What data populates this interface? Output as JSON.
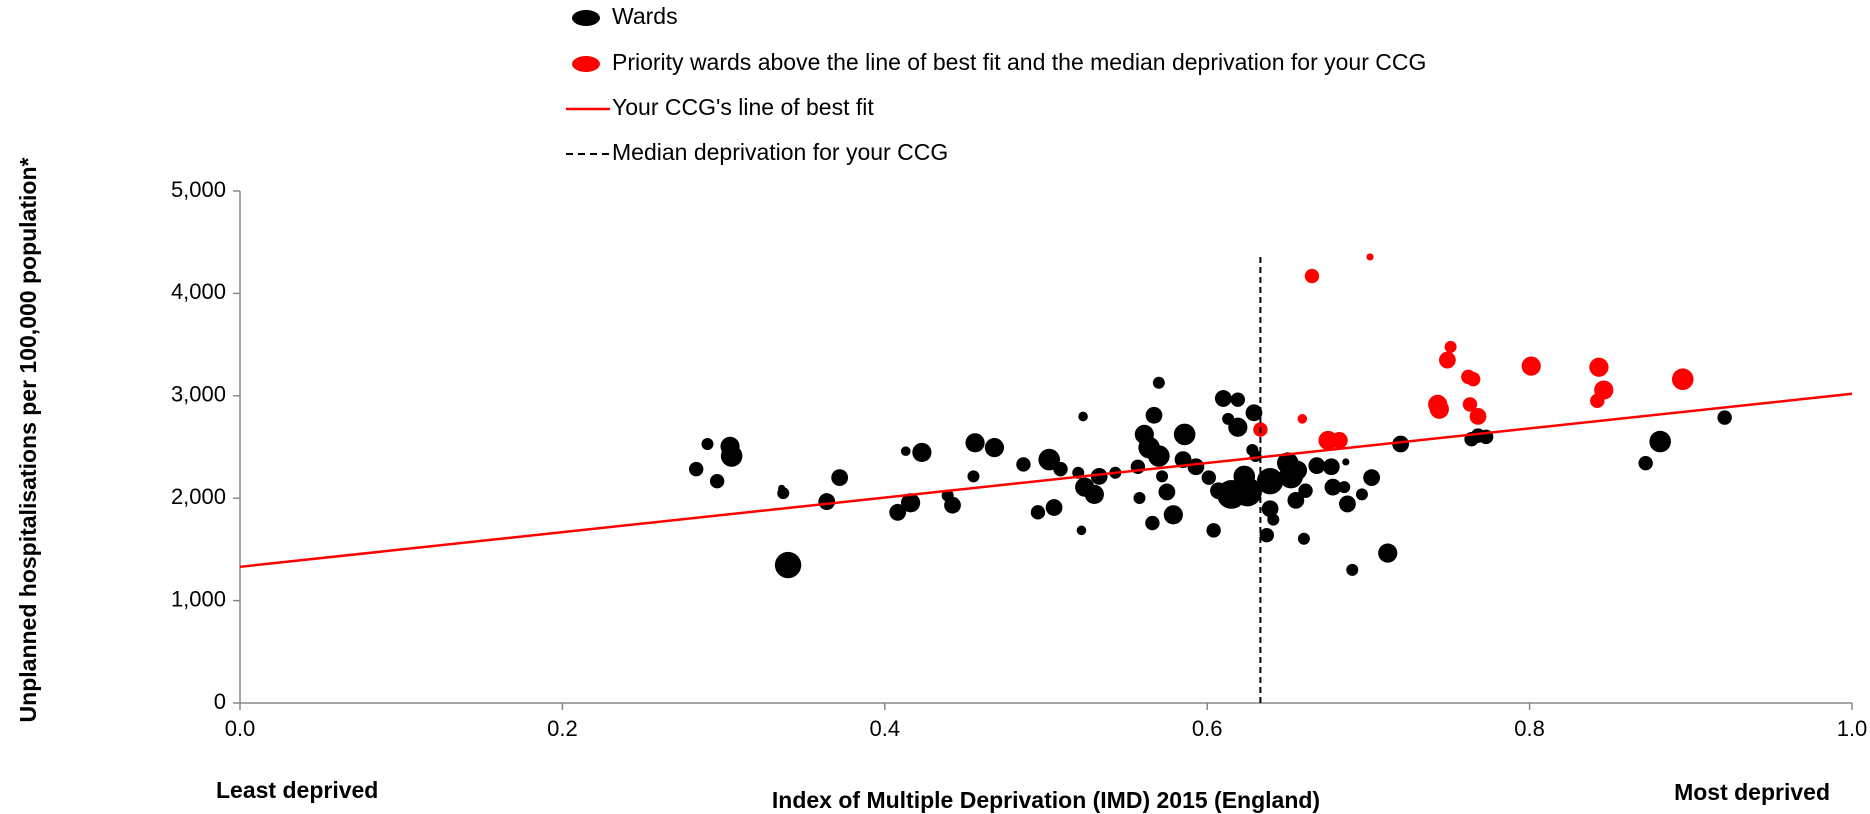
{
  "chart_data": {
    "type": "scatter",
    "x_label": "Index of Multiple Deprivation (IMD) 2015 (England)",
    "y_label": "Unplanned hospitalisations per 100,000 population*",
    "annotations": [
      "Least deprived",
      "Most deprived"
    ],
    "xlim": [
      0,
      1
    ],
    "ylim": [
      0,
      5000
    ],
    "xticks": [
      {
        "value": 0,
        "label": "0.0"
      },
      0.2,
      0.4,
      0.6,
      0.8,
      {
        "value": 1,
        "label": "1.0"
      }
    ],
    "yticks": [
      {
        "value": 0,
        "label": "0"
      },
      {
        "value": 1000,
        "label": "1,000"
      },
      {
        "value": 2000,
        "label": "2,000"
      },
      {
        "value": 3000,
        "label": "3,000"
      },
      {
        "value": 4000,
        "label": "4,000"
      },
      {
        "value": 5000,
        "label": "5,000"
      }
    ],
    "series": [
      {
        "name": "Wards",
        "color": "#000000",
        "x": [
          0.283,
          0.29,
          0.296,
          0.304,
          0.305,
          0.337,
          0.336,
          0.34,
          0.364,
          0.372,
          0.408,
          0.413,
          0.416,
          0.423,
          0.439,
          0.442,
          0.455,
          0.456,
          0.468,
          0.486,
          0.495,
          0.502,
          0.505,
          0.509,
          0.52,
          0.523,
          0.522,
          0.524,
          0.53,
          0.533,
          0.543,
          0.557,
          0.558,
          0.561,
          0.564,
          0.57,
          0.567,
          0.57,
          0.566,
          0.572,
          0.575,
          0.579,
          0.586,
          0.585,
          0.593,
          0.601,
          0.604,
          0.607,
          0.61,
          0.613,
          0.619,
          0.619,
          0.615,
          0.623,
          0.625,
          0.628,
          0.629,
          0.63,
          0.637,
          0.639,
          0.639,
          0.641,
          0.65,
          0.652,
          0.655,
          0.656,
          0.66,
          0.661,
          0.668,
          0.677,
          0.678,
          0.685,
          0.686,
          0.687,
          0.69,
          0.696,
          0.702,
          0.712,
          0.72,
          0.764,
          0.768,
          0.773,
          0.872,
          0.881,
          0.921
        ],
        "values": [
          2284,
          2529,
          2166,
          2506,
          2412,
          2049,
          2096,
          1347,
          1967,
          2201,
          1862,
          2459,
          1955,
          2447,
          2026,
          1932,
          2213,
          2541,
          2494,
          2330,
          1862,
          2377,
          1909,
          2284,
          2248,
          2798,
          1686,
          2108,
          2037,
          2213,
          2248,
          2307,
          2002,
          2623,
          2494,
          2412,
          2810,
          3127,
          1757,
          2213,
          2061,
          1838,
          2623,
          2377,
          2307,
          2201,
          1686,
          2073,
          2974,
          2775,
          2962,
          2693,
          2037,
          2213,
          2061,
          2471,
          2834,
          2412,
          1639,
          2166,
          1897,
          1791,
          2342,
          2213,
          1979,
          2272,
          1604,
          2073,
          2318,
          2307,
          2108,
          2108,
          2354,
          1944,
          1300,
          2037,
          2201,
          1464,
          2529,
          2576,
          2611,
          2599,
          2342,
          2553,
          2787
        ],
        "sizes": [
          6,
          5,
          6,
          8,
          9,
          5,
          3,
          11,
          7,
          7,
          7,
          4,
          8,
          8,
          5,
          7,
          5,
          8,
          8,
          6,
          6,
          9,
          7,
          6,
          5,
          4,
          4,
          8,
          8,
          7,
          5,
          6,
          5,
          8,
          9,
          9,
          7,
          5,
          6,
          5,
          7,
          8,
          9,
          7,
          7,
          6,
          6,
          7,
          7,
          5,
          6,
          8,
          12,
          9,
          12,
          5,
          7,
          5,
          6,
          11,
          7,
          5,
          9,
          10,
          7,
          8,
          5,
          6,
          7,
          7,
          7,
          5,
          3,
          7,
          5,
          5,
          7,
          8,
          7,
          6,
          6,
          6,
          6,
          9,
          6
        ]
      },
      {
        "name": "Priority wards above the line of best fit and the median deprivation for your CCG",
        "color": "#ff0000",
        "x": [
          0.633,
          0.659,
          0.675,
          0.682,
          0.665,
          0.701,
          0.744,
          0.743,
          0.749,
          0.751,
          0.762,
          0.765,
          0.763,
          0.768,
          0.801,
          0.843,
          0.842,
          0.846,
          0.895
        ],
        "values": [
          2670,
          2775,
          2564,
          2564,
          4169,
          4356,
          2869,
          2916,
          3349,
          3478,
          3185,
          3162,
          2916,
          2799,
          3290,
          3279,
          2951,
          3056,
          3162
        ],
        "sizes": [
          6,
          4,
          8,
          7,
          6,
          3,
          8,
          8,
          7,
          5,
          6,
          6,
          6,
          7,
          8,
          8,
          6,
          8,
          9
        ]
      }
    ],
    "best_fit": {
      "name": "Your CCG's line of best fit",
      "color": "#ff0000",
      "x": [
        0,
        1
      ],
      "values": [
        1330,
        3020
      ]
    },
    "median": {
      "name": "Median deprivation for your CCG",
      "color": "#000000",
      "x": 0.633,
      "top": 4370
    }
  }
}
